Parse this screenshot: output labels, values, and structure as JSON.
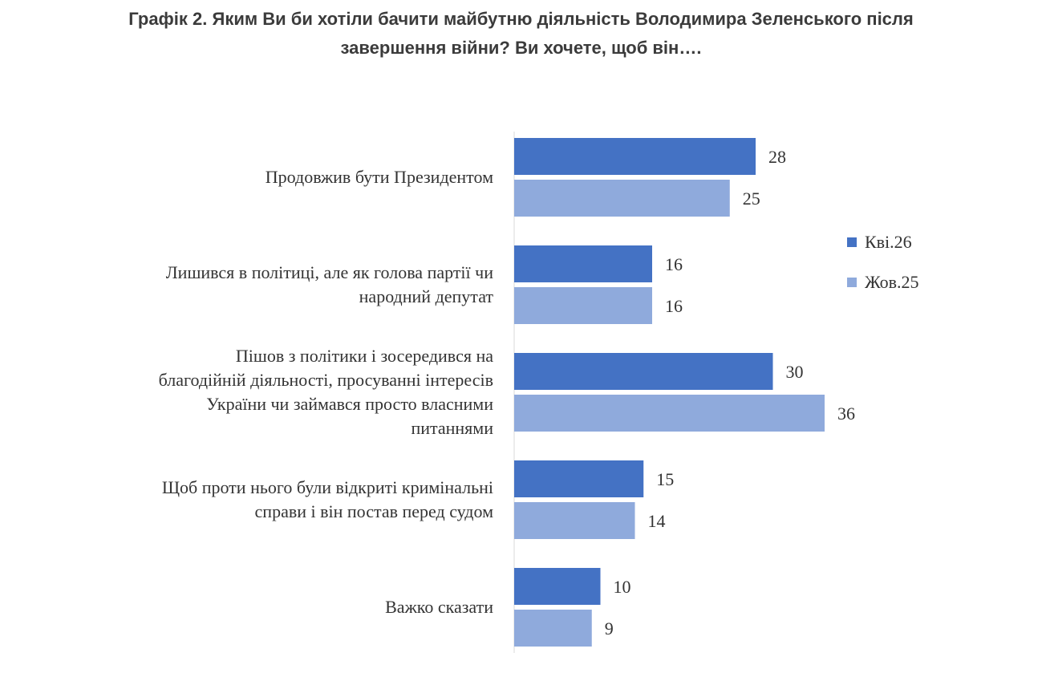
{
  "title": {
    "line1": "Графік 2. Яким Ви би хотіли бачити майбутню діяльність Володимира Зеленського після",
    "line2": "завершення війни? Ви хочете, щоб він…."
  },
  "chart_data": {
    "type": "bar",
    "orientation": "horizontal",
    "categories": [
      "Продовжив бути Президентом",
      "Лишився в політиці, але як голова партії чи народний депутат",
      "Пішов з політики і зосередився на благодійній діяльності, просуванні інтересів України чи займався просто власними питаннями",
      "Щоб проти нього були відкриті кримінальні справи і він постав перед судом",
      "Важко сказати"
    ],
    "category_lines": [
      [
        "Продовжив бути Президентом"
      ],
      [
        "Лишився в політиці, але як голова партії чи",
        "народний депутат"
      ],
      [
        "Пішов з політики і зосередився на",
        "благодійній діяльності, просуванні інтересів",
        "України чи займався просто власними",
        "питаннями"
      ],
      [
        "Щоб проти нього були відкриті кримінальні",
        "справи і він постав перед судом"
      ],
      [
        "Важко сказати"
      ]
    ],
    "series": [
      {
        "name": "Кві.26",
        "color": "#4472c4",
        "values": [
          28,
          16,
          30,
          15,
          10
        ]
      },
      {
        "name": "Жов.25",
        "color": "#8faadc",
        "values": [
          25,
          16,
          36,
          14,
          9
        ]
      }
    ],
    "xlim": [
      0,
      36
    ],
    "grid": false,
    "legend_position": "right"
  }
}
